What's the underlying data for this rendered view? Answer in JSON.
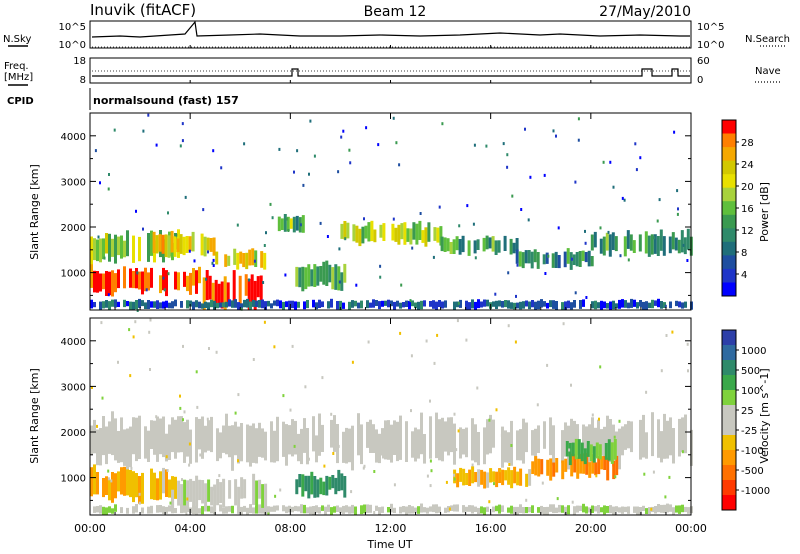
{
  "header": {
    "station": "Inuvik (fitACF)",
    "beam": "Beam 12",
    "date": "27/May/2010"
  },
  "top_panels": {
    "nsky_label": "N.Sky",
    "nsearch_label": "N.Search",
    "nsky_ticks": [
      "10^5",
      "10^0"
    ],
    "nsearch_ticks": [
      "10^5",
      "10^0"
    ],
    "freq_label": "Freq.",
    "freq_unit": "[MHz]",
    "freq_ticks": [
      "18",
      "8"
    ],
    "nave_label": "Nave",
    "nave_ticks": [
      "60",
      "0"
    ],
    "cpid_label": "CPID",
    "cpid_value": "normalsound (fast) 157"
  },
  "axes": {
    "xlabel": "Time UT",
    "x_ticks": [
      "00:00",
      "04:00",
      "08:00",
      "12:00",
      "16:00",
      "20:00",
      "00:00"
    ],
    "ylabel": "Slant Range [km]",
    "y_ticks": [
      "4000",
      "3000",
      "2000",
      "1000"
    ]
  },
  "power_colorbar": {
    "label": "Power [dB]",
    "ticks": [
      "28",
      "24",
      "20",
      "16",
      "12",
      "8",
      "4"
    ],
    "colors": [
      "#ff0000",
      "#ff7f00",
      "#f5a800",
      "#d2c800",
      "#e8e000",
      "#a8d23c",
      "#5fbf3c",
      "#3a9a50",
      "#2f8a6a",
      "#1f6e7a",
      "#1e4ea0",
      "#1f35c8",
      "#0000ff"
    ]
  },
  "velocity_colorbar": {
    "label": "Velocity [m s^-1]",
    "ticks": [
      "1000",
      "500",
      "100",
      "25",
      "-25",
      "-100",
      "-500",
      "-1000"
    ],
    "colors": [
      "#2d3fa8",
      "#2f6aa0",
      "#2f8a6a",
      "#3aa84a",
      "#7fd23c",
      "#c8c8c0",
      "#c8c8c0",
      "#f0c000",
      "#ff9a00",
      "#ff7000",
      "#ff3a00",
      "#ff0000"
    ]
  },
  "chart_data": [
    {
      "type": "heatmap",
      "title": "Power",
      "xlabel": "Time UT",
      "ylabel": "Slant Range [km]",
      "xlim": [
        0,
        24
      ],
      "ylim": [
        180,
        4500
      ],
      "colorbar_label": "Power [dB]",
      "colorbar_range": [
        0,
        30
      ],
      "bands": [
        {
          "t": [
            0.0,
            4.5
          ],
          "r": [
            550,
            1150
          ],
          "v": 28
        },
        {
          "t": [
            0.0,
            3.5
          ],
          "r": [
            1250,
            1900
          ],
          "v": 16
        },
        {
          "t": [
            2.5,
            5.0
          ],
          "r": [
            1400,
            1900
          ],
          "v": 22
        },
        {
          "t": [
            4.5,
            7.0
          ],
          "r": [
            200,
            1000
          ],
          "v": 28
        },
        {
          "t": [
            5.0,
            7.0
          ],
          "r": [
            1100,
            1500
          ],
          "v": 20
        },
        {
          "t": [
            8.2,
            10.2
          ],
          "r": [
            600,
            1200
          ],
          "v": 14
        },
        {
          "t": [
            7.5,
            8.5
          ],
          "r": [
            1900,
            2300
          ],
          "v": 14
        },
        {
          "t": [
            10.0,
            14.0
          ],
          "r": [
            1600,
            2100
          ],
          "v": 18
        },
        {
          "t": [
            14.0,
            17.0
          ],
          "r": [
            1400,
            1800
          ],
          "v": 12
        },
        {
          "t": [
            17.0,
            20.0
          ],
          "r": [
            1100,
            1500
          ],
          "v": 10
        },
        {
          "t": [
            20.0,
            24.0
          ],
          "r": [
            1400,
            1900
          ],
          "v": 12
        },
        {
          "t": [
            0.0,
            24.0
          ],
          "r": [
            200,
            400
          ],
          "v": 6
        }
      ]
    },
    {
      "type": "heatmap",
      "title": "Velocity",
      "xlabel": "Time UT",
      "ylabel": "Slant Range [km]",
      "xlim": [
        0,
        24
      ],
      "ylim": [
        180,
        4500
      ],
      "colorbar_label": "Velocity [m s^-1]",
      "colorbar_range": [
        -1000,
        1000
      ],
      "bands": [
        {
          "t": [
            0.0,
            3.5
          ],
          "r": [
            500,
            1200
          ],
          "v": -300
        },
        {
          "t": [
            0.0,
            24.0
          ],
          "r": [
            1300,
            2300
          ],
          "v": 0
        },
        {
          "t": [
            3.0,
            7.0
          ],
          "r": [
            300,
            1000
          ],
          "v": 80
        },
        {
          "t": [
            8.2,
            10.2
          ],
          "r": [
            600,
            1100
          ],
          "v": 500
        },
        {
          "t": [
            14.5,
            17.5
          ],
          "r": [
            800,
            1200
          ],
          "v": -300
        },
        {
          "t": [
            17.5,
            21.0
          ],
          "r": [
            1000,
            1500
          ],
          "v": -500
        },
        {
          "t": [
            19.0,
            21.0
          ],
          "r": [
            1300,
            1800
          ],
          "v": 300
        },
        {
          "t": [
            0.0,
            24.0
          ],
          "r": [
            200,
            400
          ],
          "v": 80
        }
      ]
    }
  ]
}
